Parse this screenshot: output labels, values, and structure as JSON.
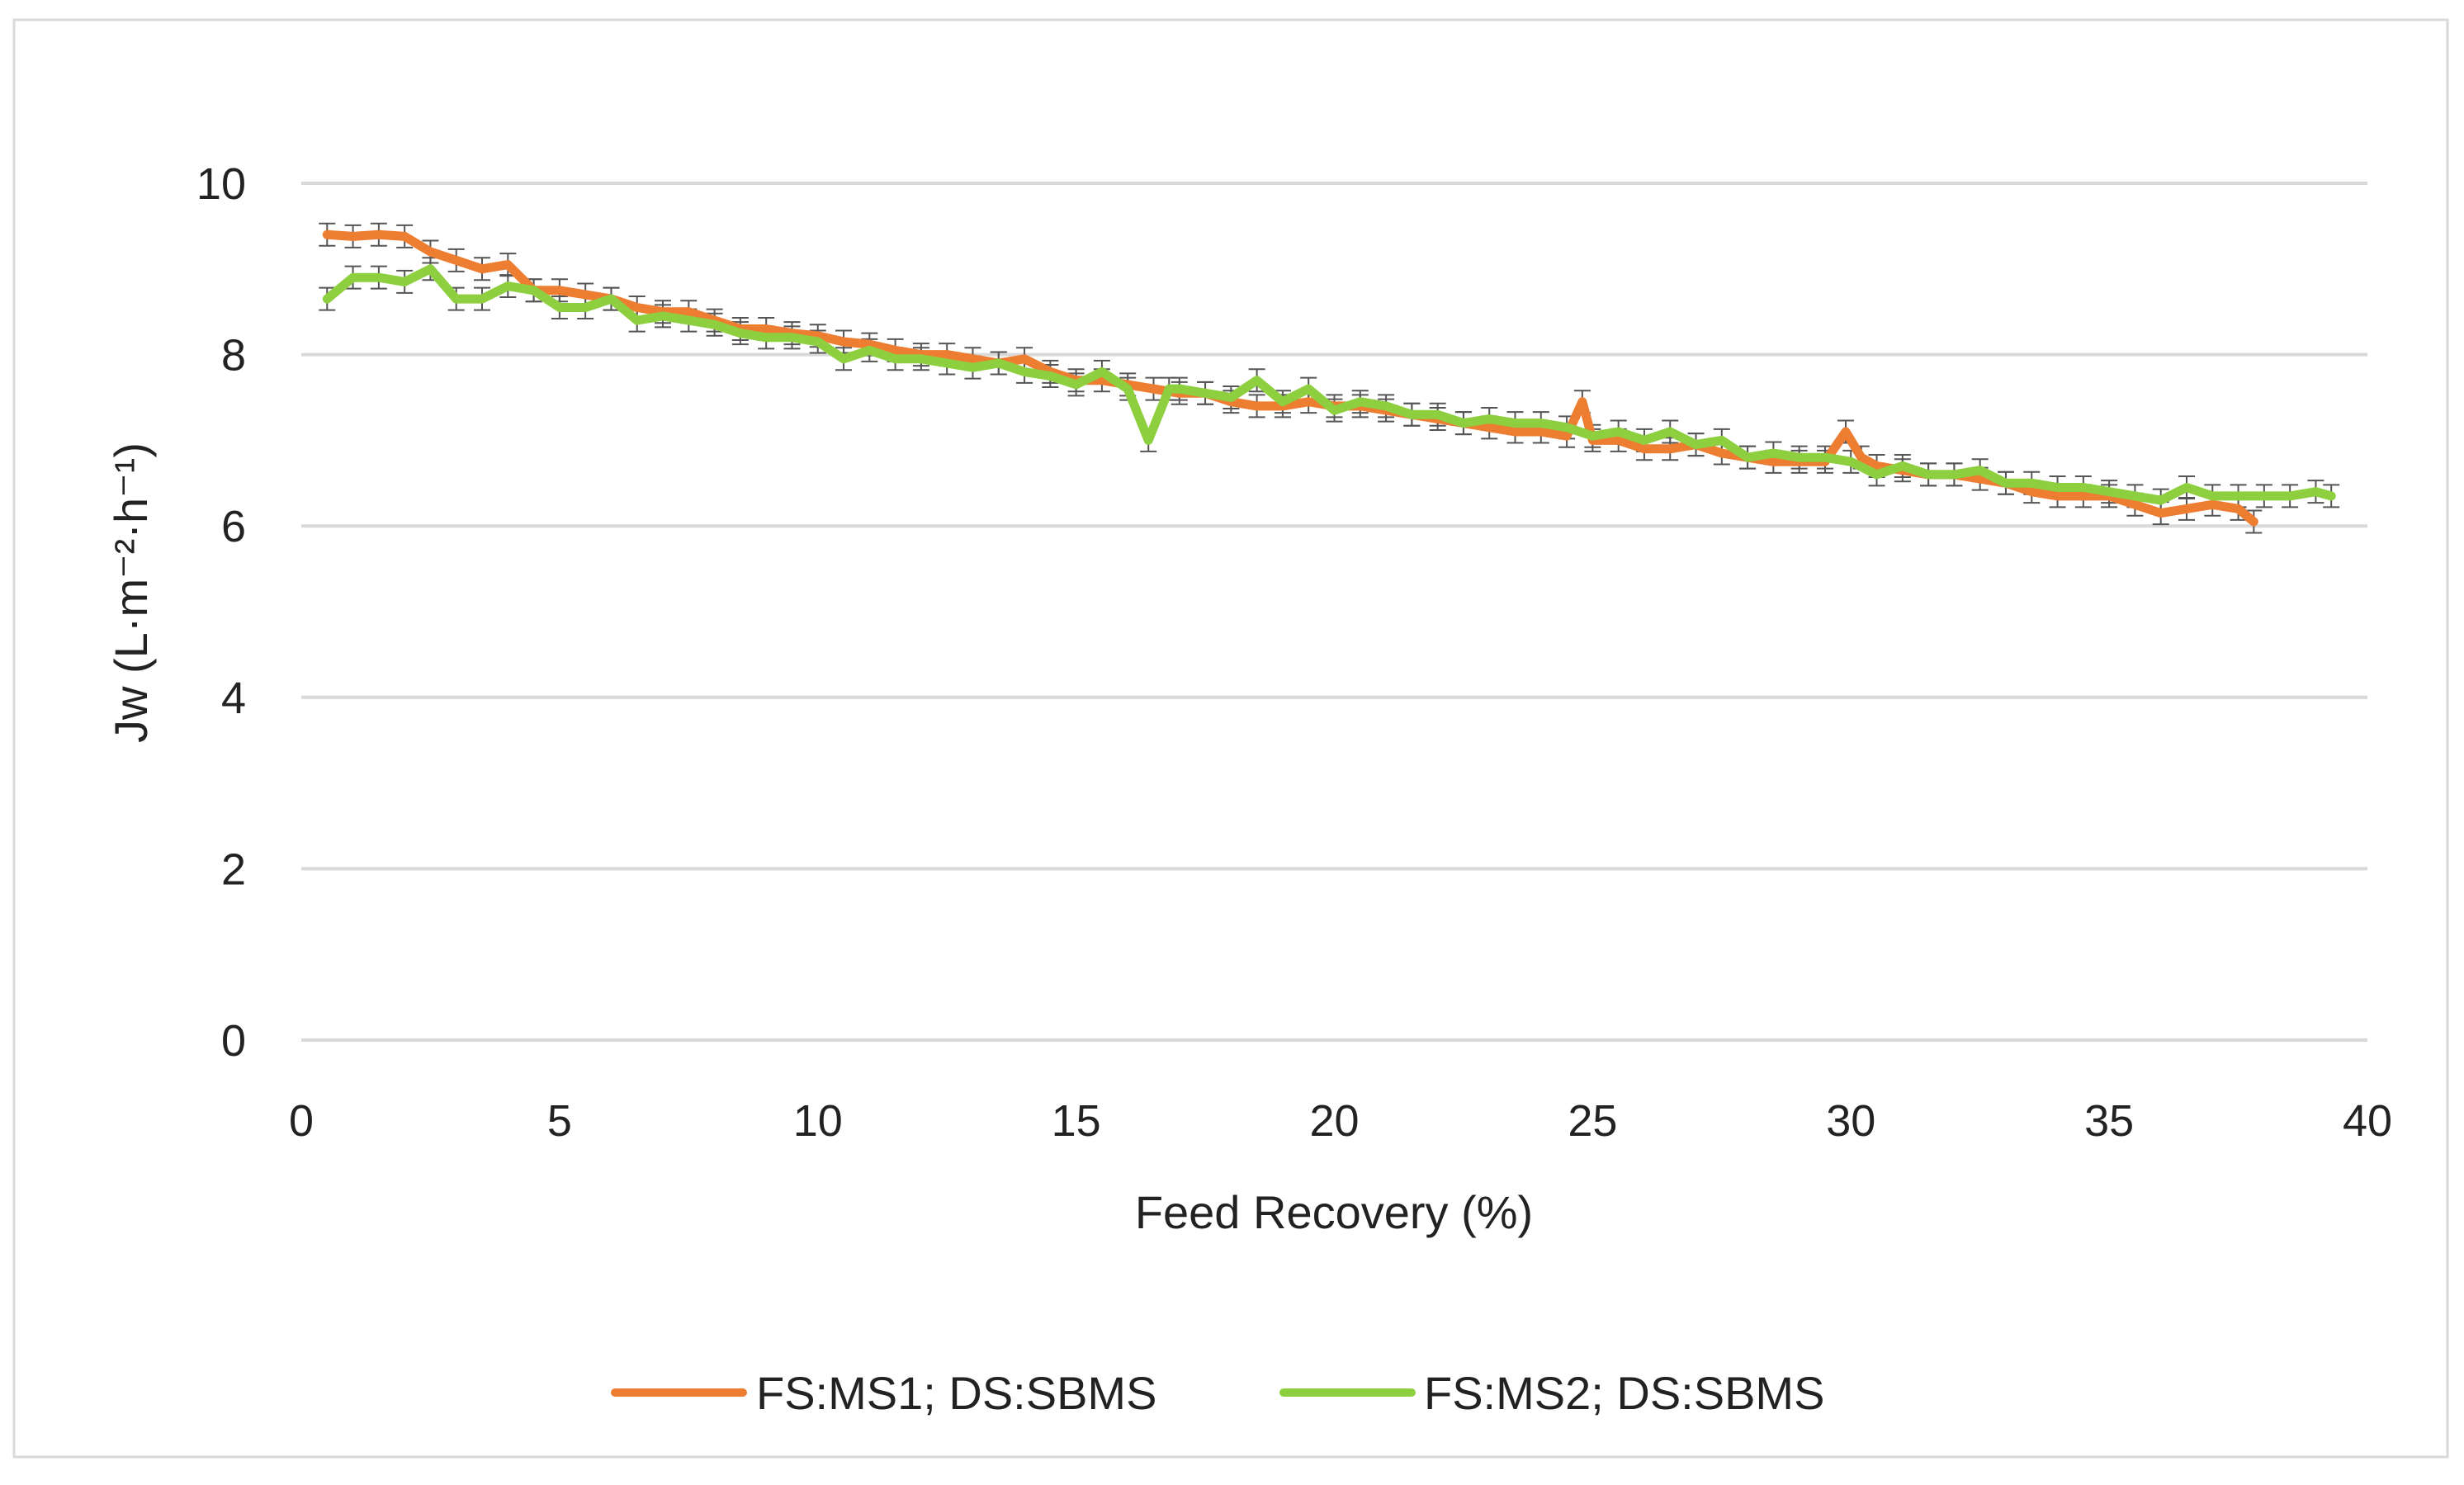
{
  "chart_data": {
    "type": "line",
    "title": "",
    "xlabel": "Feed Recovery (%)",
    "ylabel": "Jw (L·m⁻²·h⁻¹)",
    "xlim": [
      0,
      40
    ],
    "ylim": [
      0,
      10
    ],
    "x_ticks": [
      "0",
      "5",
      "10",
      "15",
      "20",
      "25",
      "30",
      "35",
      "40"
    ],
    "y_ticks": [
      "0",
      "2",
      "4",
      "6",
      "8",
      "10"
    ],
    "grid": "horizontal",
    "legend_position": "bottom",
    "error_bar": 0.13,
    "series": [
      {
        "name": "FS:MS1; DS:SBMS",
        "color": "#ED7D31",
        "x": [
          0.5,
          1,
          1.5,
          2,
          2.5,
          3,
          3.5,
          4,
          4.5,
          5,
          5.5,
          6,
          6.5,
          7,
          7.5,
          8,
          8.5,
          9,
          9.5,
          10,
          10.5,
          11,
          11.5,
          12,
          12.5,
          13,
          13.5,
          14,
          14.5,
          15,
          15.5,
          16,
          16.5,
          17,
          17.5,
          18,
          18.5,
          19,
          19.5,
          20,
          20.5,
          21,
          21.5,
          22,
          22.5,
          23,
          23.5,
          24,
          24.5,
          24.8,
          25,
          25.5,
          26,
          26.5,
          27,
          27.5,
          28,
          28.5,
          29,
          29.5,
          29.9,
          30.2,
          30.5,
          31,
          31.5,
          32,
          32.5,
          33,
          33.5,
          34,
          34.5,
          35,
          35.5,
          36,
          36.5,
          37,
          37.5,
          37.8
        ],
        "y": [
          9.4,
          9.38,
          9.4,
          9.38,
          9.2,
          9.1,
          9.0,
          9.05,
          8.75,
          8.75,
          8.7,
          8.65,
          8.55,
          8.5,
          8.5,
          8.4,
          8.3,
          8.3,
          8.25,
          8.22,
          8.15,
          8.12,
          8.05,
          8.0,
          8.0,
          7.95,
          7.9,
          7.95,
          7.8,
          7.7,
          7.7,
          7.65,
          7.6,
          7.55,
          7.55,
          7.45,
          7.4,
          7.4,
          7.45,
          7.4,
          7.4,
          7.35,
          7.3,
          7.25,
          7.2,
          7.15,
          7.1,
          7.1,
          7.05,
          7.45,
          7.0,
          7.0,
          6.9,
          6.9,
          6.95,
          6.85,
          6.8,
          6.75,
          6.75,
          6.75,
          7.1,
          6.8,
          6.7,
          6.65,
          6.6,
          6.6,
          6.55,
          6.5,
          6.4,
          6.35,
          6.35,
          6.35,
          6.25,
          6.15,
          6.2,
          6.25,
          6.2,
          6.05
        ]
      },
      {
        "name": "FS:MS2; DS:SBMS",
        "color": "#8DCF3F",
        "x": [
          0.5,
          1,
          1.5,
          2,
          2.5,
          3,
          3.5,
          4,
          4.5,
          5,
          5.5,
          6,
          6.5,
          7,
          7.5,
          8,
          8.5,
          9,
          9.5,
          10,
          10.5,
          11,
          11.5,
          12,
          12.5,
          13,
          13.5,
          14,
          14.5,
          15,
          15.5,
          16,
          16.4,
          16.8,
          17,
          17.5,
          18,
          18.5,
          19,
          19.5,
          20,
          20.5,
          21,
          21.5,
          22,
          22.5,
          23,
          23.5,
          24,
          24.5,
          25,
          25.5,
          26,
          26.5,
          27,
          27.5,
          28,
          28.5,
          29,
          29.5,
          30,
          30.5,
          31,
          31.5,
          32,
          32.5,
          33,
          33.5,
          34,
          34.5,
          35,
          35.5,
          36,
          36.5,
          37,
          37.5,
          38,
          38.5,
          39,
          39.3
        ],
        "y": [
          8.65,
          8.9,
          8.9,
          8.85,
          9.0,
          8.65,
          8.65,
          8.8,
          8.75,
          8.55,
          8.55,
          8.65,
          8.4,
          8.45,
          8.4,
          8.35,
          8.25,
          8.2,
          8.2,
          8.15,
          7.95,
          8.05,
          7.95,
          7.95,
          7.9,
          7.85,
          7.9,
          7.8,
          7.75,
          7.65,
          7.8,
          7.6,
          7.0,
          7.6,
          7.6,
          7.55,
          7.5,
          7.7,
          7.45,
          7.6,
          7.35,
          7.45,
          7.4,
          7.3,
          7.3,
          7.2,
          7.25,
          7.2,
          7.2,
          7.15,
          7.05,
          7.1,
          7.0,
          7.1,
          6.95,
          7.0,
          6.8,
          6.85,
          6.8,
          6.8,
          6.75,
          6.6,
          6.7,
          6.6,
          6.6,
          6.65,
          6.5,
          6.5,
          6.45,
          6.45,
          6.4,
          6.35,
          6.3,
          6.45,
          6.35,
          6.35,
          6.35,
          6.35,
          6.4,
          6.35
        ]
      }
    ]
  }
}
